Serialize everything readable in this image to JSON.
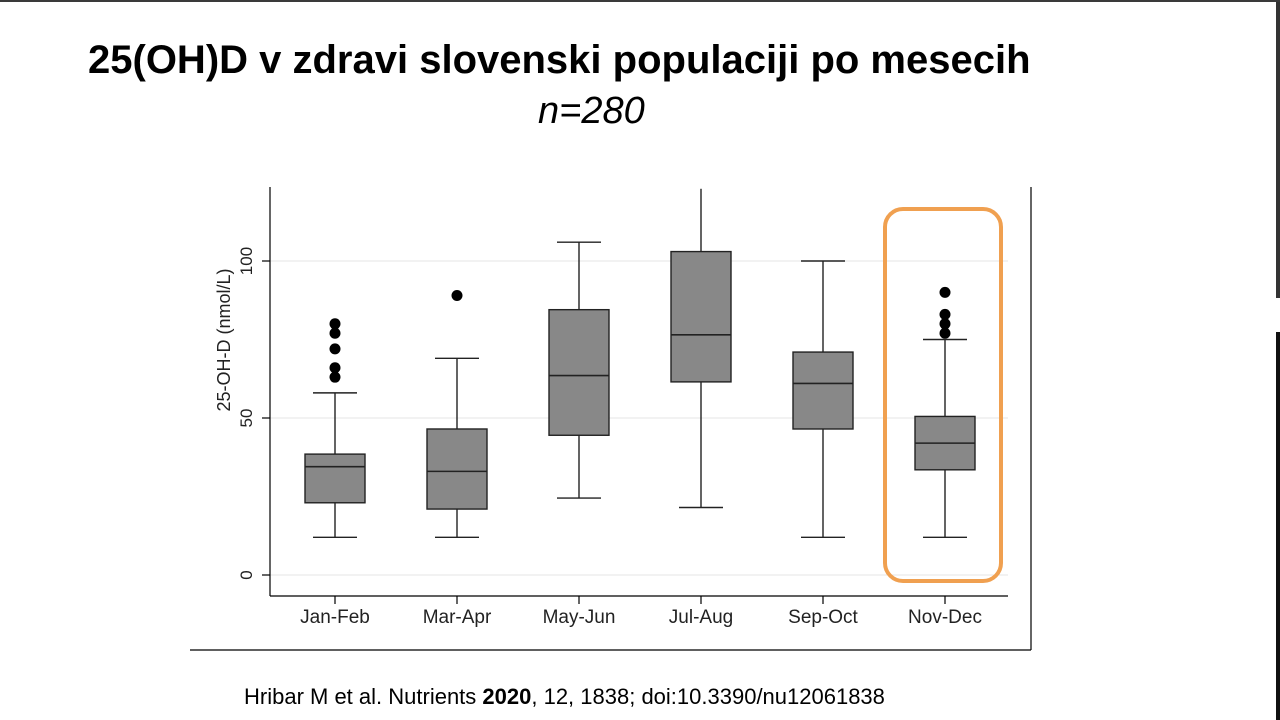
{
  "slide": {
    "title": "25(OH)D v zdravi slovenski populaciji po mesecih",
    "subtitle": "n=280",
    "citation": {
      "authors": "Hribar M et al. Nutrients ",
      "year": "2020",
      "rest": ", 12, 1838; doi:10.3390/nu12061838"
    }
  },
  "chart_data": {
    "type": "boxplot",
    "title": "",
    "xlabel": "",
    "ylabel": "25-OH-D (nmol/L)",
    "ylim": [
      0,
      123
    ],
    "yticks": [
      0,
      50,
      100
    ],
    "grid": true,
    "box_color": "#888888",
    "highlight_color": "#f0a050",
    "highlight_category": "Nov-Dec",
    "categories": [
      "Jan-Feb",
      "Mar-Apr",
      "May-Jun",
      "Jul-Aug",
      "Sep-Oct",
      "Nov-Dec"
    ],
    "boxes": [
      {
        "category": "Jan-Feb",
        "whisker_low": 12,
        "q1": 23,
        "median": 34.5,
        "q3": 38.5,
        "whisker_high": 58,
        "outliers": [
          63,
          66,
          72,
          77,
          80
        ]
      },
      {
        "category": "Mar-Apr",
        "whisker_low": 12,
        "q1": 21,
        "median": 33,
        "q3": 46.5,
        "whisker_high": 69,
        "outliers": [
          89
        ]
      },
      {
        "category": "May-Jun",
        "whisker_low": 24.5,
        "q1": 44.5,
        "median": 63.5,
        "q3": 84.5,
        "whisker_high": 106,
        "outliers": []
      },
      {
        "category": "Jul-Aug",
        "whisker_low": 21.5,
        "q1": 61.5,
        "median": 76.5,
        "q3": 103,
        "whisker_high": 123,
        "outliers": []
      },
      {
        "category": "Sep-Oct",
        "whisker_low": 12,
        "q1": 46.5,
        "median": 61,
        "q3": 71,
        "whisker_high": 100,
        "outliers": []
      },
      {
        "category": "Nov-Dec",
        "whisker_low": 12,
        "q1": 33.5,
        "median": 42,
        "q3": 50.5,
        "whisker_high": 75,
        "outliers": [
          77,
          80,
          83,
          90
        ]
      }
    ]
  }
}
